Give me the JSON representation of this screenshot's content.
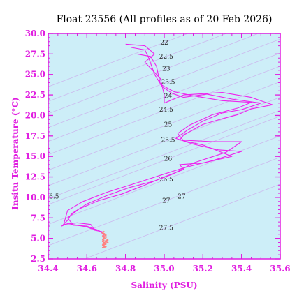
{
  "chart_data": {
    "type": "line",
    "title": "Float 23556  (All profiles as of 20 Feb 2026)",
    "xlabel": "Salinity (PSU)",
    "ylabel": "Insitu Temperature (°C)",
    "xlim": [
      34.4,
      35.6
    ],
    "ylim": [
      2.5,
      30.0
    ],
    "x_ticks": [
      "34.4",
      "34.6",
      "34.8",
      "35.0",
      "35.2",
      "35.4",
      "35.6"
    ],
    "y_ticks": [
      "2.5",
      "5.0",
      "7.5",
      "10.0",
      "12.5",
      "15.0",
      "17.5",
      "20.0",
      "22.5",
      "25.0",
      "27.5",
      "30.0"
    ],
    "grid": false,
    "colors": {
      "axis": "#e01ee0",
      "plot_background": "#cdeef8",
      "profile": "#ee22ee",
      "deep_profile": "#ff8080",
      "isopycnal": "#ccb8ee"
    },
    "isopycnals": [
      {
        "label": "22",
        "sigma": 22,
        "label_point": [
          35.0,
          28.9
        ]
      },
      {
        "label": "22.5",
        "sigma": 22.5,
        "label_point": [
          35.01,
          27.2
        ]
      },
      {
        "label": "23",
        "sigma": 23,
        "label_point": [
          35.01,
          25.7
        ]
      },
      {
        "label": "23.5",
        "sigma": 23.5,
        "label_point": [
          35.02,
          24.1
        ]
      },
      {
        "label": "24",
        "sigma": 24,
        "label_point": [
          35.02,
          22.4
        ]
      },
      {
        "label": "24.5",
        "sigma": 24.5,
        "label_point": [
          35.01,
          20.7
        ]
      },
      {
        "label": "25",
        "sigma": 25,
        "label_point": [
          35.02,
          18.9
        ]
      },
      {
        "label": "25.5",
        "sigma": 25.5,
        "label_point": [
          35.02,
          17.0
        ]
      },
      {
        "label": "26",
        "sigma": 26,
        "label_point": [
          35.02,
          14.7
        ]
      },
      {
        "label": "26.5",
        "sigma": 26.5,
        "label_point": [
          35.01,
          12.2
        ]
      },
      {
        "label": "27",
        "sigma": 27,
        "label_point": [
          35.01,
          9.6
        ]
      },
      {
        "label": "27",
        "sigma": 27,
        "label_point": [
          35.09,
          10.1
        ]
      },
      {
        "label": "27.5",
        "sigma": 27.5,
        "label_point": [
          35.01,
          6.3
        ]
      },
      {
        "label": "6.5",
        "sigma": 26.9,
        "label_point": [
          34.43,
          10.1
        ]
      }
    ],
    "series": [
      {
        "x": [
          34.8,
          34.9,
          34.95,
          34.9,
          34.98,
          35.0,
          35.0,
          35.1,
          35.3,
          35.45,
          35.56,
          35.45,
          35.38,
          35.3,
          35.2,
          35.1,
          35.08,
          35.25,
          35.4,
          35.32,
          35.15,
          35.05,
          34.95,
          34.82,
          34.7,
          34.6,
          34.52,
          34.5,
          34.47,
          34.5,
          34.55,
          34.6,
          34.62,
          34.66,
          34.68,
          34.69
        ],
        "y": [
          28.7,
          28.5,
          27.5,
          26.5,
          24.5,
          22.5,
          21.5,
          22.5,
          22.8,
          22.2,
          21.3,
          20.8,
          20.1,
          19.6,
          18.9,
          17.6,
          17.0,
          16.8,
          16.8,
          15.5,
          14.2,
          12.9,
          12.0,
          11.2,
          10.2,
          9.2,
          8.0,
          7.2,
          6.5,
          6.8,
          6.6,
          6.4,
          6.2,
          6.0,
          5.6,
          5.2
        ]
      },
      {
        "x": [
          34.83,
          34.9,
          34.92,
          34.95,
          34.99,
          35.04,
          35.1,
          35.22,
          35.35,
          35.5,
          35.4,
          35.3,
          35.2,
          35.12,
          35.06,
          35.15,
          35.28,
          35.4,
          35.25,
          35.1,
          34.98,
          34.85,
          34.7,
          34.58,
          34.5,
          34.48,
          34.55,
          34.62,
          34.64,
          34.68
        ],
        "y": [
          28.3,
          28.0,
          27.0,
          25.0,
          23.5,
          22.7,
          22.2,
          22.6,
          22.0,
          21.5,
          20.7,
          20.3,
          19.3,
          18.2,
          17.2,
          16.5,
          15.8,
          15.6,
          14.5,
          13.6,
          12.7,
          11.7,
          10.6,
          9.5,
          8.4,
          6.7,
          6.9,
          6.7,
          6.0,
          5.8
        ]
      },
      {
        "x": [
          34.86,
          34.93,
          34.96,
          34.98,
          35.05,
          35.15,
          35.3,
          35.45,
          35.38,
          35.25,
          35.13,
          35.07,
          35.1,
          35.2,
          35.35,
          35.2,
          35.08,
          35.1,
          35.0,
          34.9,
          34.78,
          34.66,
          34.56,
          34.5,
          34.53,
          34.6,
          34.63,
          34.66
        ],
        "y": [
          27.5,
          27.2,
          26.0,
          23.8,
          22.9,
          22.4,
          21.8,
          21.6,
          20.9,
          20.1,
          18.8,
          17.8,
          16.9,
          16.4,
          15.0,
          14.2,
          14.0,
          13.4,
          12.5,
          11.5,
          10.4,
          9.6,
          8.6,
          7.5,
          6.6,
          6.5,
          6.2,
          6.0
        ]
      },
      {
        "x": [
          34.68,
          34.69,
          34.68,
          34.7,
          34.69,
          34.68,
          34.7,
          34.69,
          34.68,
          34.7,
          34.69,
          34.68,
          34.7,
          34.69,
          34.68,
          34.69
        ],
        "y": [
          5.7,
          5.5,
          5.3,
          5.1,
          4.9,
          4.8,
          4.6,
          4.5,
          4.4,
          4.3,
          4.2,
          4.1,
          4.0,
          3.95,
          3.9,
          3.85
        ]
      },
      {
        "x": [
          34.67,
          34.69,
          34.7,
          34.68,
          34.69,
          34.71,
          34.68,
          34.69,
          34.7,
          34.68,
          34.69,
          34.7,
          34.69
        ],
        "y": [
          5.8,
          5.6,
          5.4,
          5.2,
          5.0,
          4.8,
          4.6,
          4.5,
          4.3,
          4.2,
          4.1,
          4.0,
          3.9
        ]
      },
      {
        "x": [
          34.69,
          34.68,
          34.7,
          34.69,
          34.68,
          34.69,
          34.71,
          34.69,
          34.68,
          34.69,
          34.7
        ],
        "y": [
          5.9,
          5.6,
          5.3,
          5.1,
          4.9,
          4.7,
          4.5,
          4.4,
          4.2,
          4.0,
          3.9
        ]
      }
    ]
  }
}
